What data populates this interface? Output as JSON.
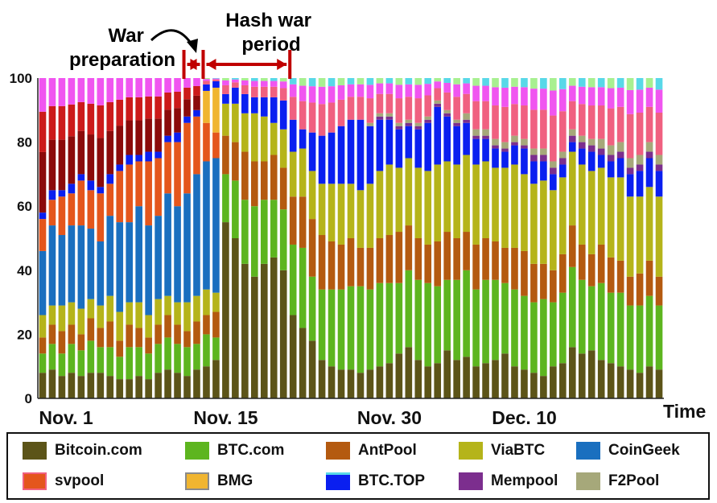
{
  "chart_data": {
    "type": "bar",
    "stacked": true,
    "title": "",
    "xlabel": "Time",
    "ylabel": "",
    "ylim": [
      0,
      100
    ],
    "yticks": [
      0,
      20,
      40,
      60,
      80,
      100
    ],
    "xtick_labels": [
      "Nov. 1",
      "Nov. 15",
      "Nov. 30",
      "Dec. 10"
    ],
    "xtick_day_index": [
      0,
      17,
      34,
      48
    ],
    "annotations": {
      "war_preparation": "War\npreparation",
      "hash_war_period": "Hash war\nperiod"
    },
    "war_preparation_days": [
      15,
      17
    ],
    "hash_war_days": [
      17,
      26
    ],
    "series": [
      {
        "name": "Bitcoin.com",
        "color": "#5c5418",
        "values": [
          8,
          9,
          7,
          8,
          7,
          8,
          8,
          7,
          6,
          6,
          7,
          6,
          8,
          9,
          8,
          7,
          9,
          10,
          12,
          55,
          50,
          42,
          38,
          42,
          44,
          40,
          26,
          22,
          18,
          12,
          10,
          9,
          9,
          8,
          9,
          10,
          11,
          14,
          16,
          12,
          10,
          11,
          15,
          12,
          13,
          10,
          11,
          12,
          14,
          10,
          9,
          8,
          7,
          10,
          11,
          16,
          14,
          15,
          12,
          11,
          10,
          9,
          8,
          10,
          9
        ]
      },
      {
        "name": "BTC.com",
        "color": "#5db51f",
        "values": [
          6,
          8,
          7,
          9,
          8,
          10,
          8,
          9,
          7,
          10,
          9,
          8,
          9,
          10,
          9,
          9,
          8,
          10,
          7,
          15,
          18,
          20,
          22,
          20,
          18,
          19,
          22,
          25,
          20,
          22,
          24,
          25,
          26,
          27,
          25,
          26,
          25,
          22,
          24,
          25,
          26,
          24,
          22,
          25,
          27,
          24,
          26,
          25,
          22,
          24,
          23,
          22,
          24,
          20,
          22,
          25,
          23,
          20,
          24,
          22,
          23,
          20,
          21,
          22,
          20
        ]
      },
      {
        "name": "AntPool",
        "color": "#b45a10",
        "values": [
          5,
          6,
          7,
          6,
          5,
          7,
          6,
          8,
          5,
          7,
          6,
          5,
          6,
          7,
          6,
          5,
          7,
          6,
          8,
          12,
          12,
          15,
          14,
          12,
          14,
          13,
          15,
          16,
          18,
          17,
          15,
          14,
          15,
          12,
          13,
          14,
          15,
          16,
          14,
          13,
          12,
          14,
          15,
          13,
          12,
          14,
          13,
          12,
          11,
          13,
          14,
          12,
          11,
          10,
          12,
          13,
          11,
          10,
          12,
          11,
          10,
          9,
          10,
          11,
          9
        ]
      },
      {
        "name": "ViaBTC",
        "color": "#b5b41a",
        "values": [
          7,
          6,
          8,
          7,
          8,
          6,
          7,
          8,
          9,
          7,
          8,
          7,
          8,
          6,
          7,
          9,
          8,
          8,
          6,
          10,
          12,
          12,
          15,
          14,
          10,
          12,
          14,
          15,
          15,
          16,
          18,
          19,
          17,
          18,
          20,
          21,
          22,
          20,
          21,
          22,
          23,
          24,
          22,
          23,
          24,
          25,
          24,
          23,
          25,
          26,
          24,
          25,
          26,
          25,
          24,
          23,
          25,
          26,
          24,
          25,
          26,
          25,
          24,
          23,
          25
        ]
      },
      {
        "name": "CoinGeek",
        "color": "#1a6fbf",
        "values": [
          20,
          25,
          22,
          24,
          26,
          22,
          20,
          25,
          28,
          25,
          30,
          28,
          26,
          32,
          30,
          34,
          38,
          40,
          42,
          0,
          0,
          0,
          0,
          0,
          0,
          0,
          0,
          0,
          0,
          0,
          0,
          0,
          0,
          0,
          0,
          0,
          0,
          0,
          0,
          0,
          0,
          0,
          0,
          0,
          0,
          0,
          0,
          0,
          0,
          0,
          0,
          0,
          0,
          0,
          0,
          0,
          0,
          0,
          0,
          0,
          0,
          0,
          0,
          0,
          0
        ]
      },
      {
        "name": "svpool",
        "color": "#e4561c",
        "values": [
          10,
          8,
          12,
          10,
          14,
          12,
          15,
          10,
          16,
          18,
          14,
          20,
          18,
          16,
          20,
          22,
          18,
          12,
          8,
          0,
          0,
          0,
          0,
          0,
          0,
          0,
          0,
          0,
          0,
          0,
          0,
          0,
          0,
          0,
          0,
          0,
          0,
          0,
          0,
          0,
          0,
          0,
          0,
          0,
          0,
          0,
          0,
          0,
          0,
          0,
          0,
          0,
          0,
          0,
          0,
          0,
          0,
          0,
          0,
          0,
          0,
          0,
          0,
          0,
          0
        ]
      },
      {
        "name": "BMG",
        "color": "#f0b530",
        "values": [
          0,
          0,
          0,
          0,
          0,
          0,
          0,
          0,
          0,
          0,
          0,
          0,
          0,
          0,
          0,
          0,
          0,
          10,
          14,
          0,
          0,
          0,
          0,
          0,
          0,
          0,
          0,
          0,
          0,
          0,
          0,
          0,
          0,
          0,
          0,
          0,
          0,
          0,
          0,
          0,
          0,
          0,
          0,
          0,
          0,
          0,
          0,
          0,
          0,
          0,
          0,
          0,
          0,
          0,
          0,
          0,
          0,
          0,
          0,
          0,
          0,
          0,
          0,
          0,
          0
        ]
      },
      {
        "name": "BTC.TOP",
        "color": "#0a1ff0",
        "values": [
          2,
          3,
          2,
          3,
          2,
          3,
          2,
          3,
          2,
          3,
          2,
          3,
          2,
          2,
          3,
          2,
          2,
          2,
          2,
          3,
          5,
          6,
          5,
          6,
          8,
          9,
          10,
          6,
          12,
          15,
          16,
          18,
          20,
          22,
          18,
          16,
          14,
          12,
          10,
          12,
          15,
          18,
          14,
          12,
          10,
          8,
          7,
          6,
          5,
          6,
          8,
          7,
          6,
          5,
          4,
          3,
          5,
          6,
          4,
          5,
          6,
          7,
          8,
          9,
          8
        ]
      },
      {
        "name": "Mempool",
        "color": "#7c2e8e",
        "values": [
          0,
          0,
          0,
          0,
          0,
          0,
          0,
          0,
          0,
          0,
          0,
          0,
          0,
          0,
          0,
          0,
          0,
          0,
          0,
          0,
          0,
          0,
          0,
          0,
          0,
          0,
          0,
          0,
          0,
          0,
          0,
          0,
          0,
          0,
          0,
          1,
          1,
          1,
          1,
          1,
          1,
          1,
          1,
          1,
          1,
          1,
          1,
          1,
          1,
          1,
          1,
          2,
          2,
          2,
          2,
          2,
          2,
          2,
          2,
          2,
          2,
          2,
          2,
          2,
          2
        ]
      },
      {
        "name": "F2Pool",
        "color": "#a6a87a",
        "values": [
          0,
          0,
          0,
          0,
          0,
          0,
          0,
          0,
          0,
          0,
          0,
          0,
          0,
          0,
          0,
          0,
          0,
          0,
          0,
          0,
          0,
          0,
          0,
          0,
          0,
          0,
          0,
          0,
          0,
          0,
          0,
          0,
          0,
          0,
          1,
          1,
          1,
          1,
          1,
          1,
          1,
          1,
          1,
          1,
          2,
          2,
          2,
          2,
          2,
          2,
          2,
          2,
          2,
          2,
          2,
          2,
          2,
          2,
          3,
          3,
          3,
          3,
          3,
          3,
          3
        ]
      }
    ],
    "other_series_colors": [
      "#8b0a0a",
      "#cc1a1a",
      "#f055f0",
      "#f06080",
      "#a8f090",
      "#58d8e8"
    ],
    "legend": {
      "placement": "bottom",
      "entries": [
        {
          "label": "Bitcoin.com",
          "color": "#5c5418"
        },
        {
          "label": "BTC.com",
          "color": "#5db51f"
        },
        {
          "label": "AntPool",
          "color": "#b45a10"
        },
        {
          "label": "ViaBTC",
          "color": "#b5b41a"
        },
        {
          "label": "CoinGeek",
          "color": "#1a6fbf"
        },
        {
          "label": "svpool",
          "color": "#e4561c"
        },
        {
          "label": "BMG",
          "color": "#f0b530"
        },
        {
          "label": "BTC.TOP",
          "color": "#0a1ff0"
        },
        {
          "label": "Mempool",
          "color": "#7c2e8e"
        },
        {
          "label": "F2Pool",
          "color": "#a6a87a"
        }
      ]
    },
    "annotation_color": "#c00000"
  }
}
